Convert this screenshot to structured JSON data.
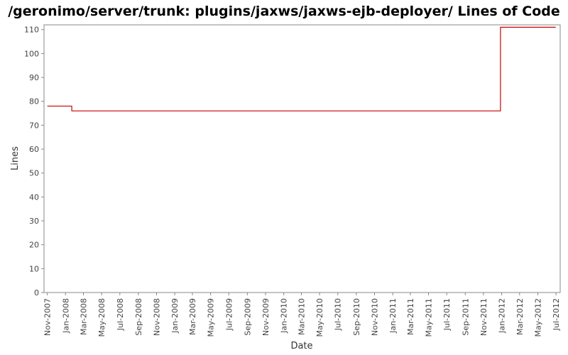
{
  "chart_data": {
    "type": "line",
    "title": "/geronimo/server/trunk: plugins/jaxws/jaxws-ejb-deployer/ Lines of Code",
    "xlabel": "Date",
    "ylabel": "Lines",
    "ylim": [
      0,
      112
    ],
    "yticks": [
      0,
      10,
      20,
      30,
      40,
      50,
      60,
      70,
      80,
      90,
      100,
      110
    ],
    "xlim": [
      "2007-10-21",
      "2012-07-15"
    ],
    "xticks": [
      "Nov-2007",
      "Jan-2008",
      "Mar-2008",
      "May-2008",
      "Jul-2008",
      "Sep-2008",
      "Nov-2008",
      "Jan-2009",
      "Mar-2009",
      "May-2009",
      "Jul-2009",
      "Sep-2009",
      "Nov-2009",
      "Jan-2010",
      "Mar-2010",
      "May-2010",
      "Jul-2010",
      "Sep-2010",
      "Nov-2010",
      "Jan-2011",
      "Mar-2011",
      "May-2011",
      "Jul-2011",
      "Sep-2011",
      "Nov-2011",
      "Jan-2012",
      "Mar-2012",
      "May-2012",
      "Jul-2012"
    ],
    "xtick_dates": [
      "2007-11-01",
      "2008-01-01",
      "2008-03-01",
      "2008-05-01",
      "2008-07-01",
      "2008-09-01",
      "2008-11-01",
      "2009-01-01",
      "2009-03-01",
      "2009-05-01",
      "2009-07-01",
      "2009-09-01",
      "2009-11-01",
      "2010-01-01",
      "2010-03-01",
      "2010-05-01",
      "2010-07-01",
      "2010-09-01",
      "2010-11-01",
      "2011-01-01",
      "2011-03-01",
      "2011-05-01",
      "2011-07-01",
      "2011-09-01",
      "2011-11-01",
      "2012-01-01",
      "2012-03-01",
      "2012-05-01",
      "2012-07-01"
    ],
    "grid": false,
    "series": [
      {
        "color": "#cc0000",
        "step": true,
        "points": [
          {
            "x": "2007-11-01",
            "y": 78
          },
          {
            "x": "2008-01-22",
            "y": 76
          },
          {
            "x": "2011-12-28",
            "y": 111
          },
          {
            "x": "2012-06-30",
            "y": 111
          }
        ]
      }
    ]
  }
}
